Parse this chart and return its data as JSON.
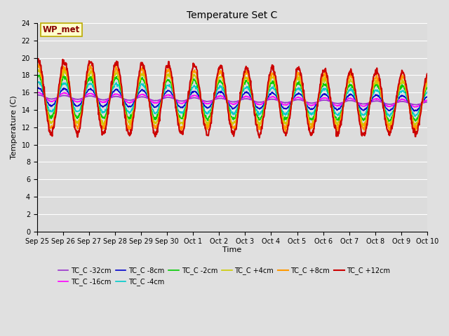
{
  "title": "Temperature Set C",
  "xlabel": "Time",
  "ylabel": "Temperature (C)",
  "ylim": [
    0,
    24
  ],
  "yticks": [
    0,
    2,
    4,
    6,
    8,
    10,
    12,
    14,
    16,
    18,
    20,
    22,
    24
  ],
  "fig_bg": "#e0e0e0",
  "plot_bg": "#dcdcdc",
  "annotation_label": "WP_met",
  "annotation_box_facecolor": "#ffffcc",
  "annotation_box_edgecolor": "#bbaa00",
  "annotation_text_color": "#880000",
  "series_order": [
    "TC_C -32cm",
    "TC_C -16cm",
    "TC_C -8cm",
    "TC_C -4cm",
    "TC_C -2cm",
    "TC_C +4cm",
    "TC_C +8cm",
    "TC_C +12cm"
  ],
  "series_colors": {
    "TC_C -32cm": "#9933cc",
    "TC_C -16cm": "#ff00ff",
    "TC_C -8cm": "#0000cc",
    "TC_C -4cm": "#00cccc",
    "TC_C -2cm": "#00cc00",
    "TC_C +4cm": "#cccc00",
    "TC_C +8cm": "#ff9900",
    "TC_C +12cm": "#cc0000"
  },
  "series_lw": {
    "TC_C -32cm": 1.2,
    "TC_C -16cm": 1.2,
    "TC_C -8cm": 1.2,
    "TC_C -4cm": 1.2,
    "TC_C -2cm": 1.2,
    "TC_C +4cm": 1.2,
    "TC_C +8cm": 1.5,
    "TC_C +12cm": 1.5
  },
  "amplitudes": {
    "TC_C -32cm": 0.25,
    "TC_C -16cm": 0.6,
    "TC_C -8cm": 1.2,
    "TC_C -4cm": 2.0,
    "TC_C -2cm": 2.8,
    "TC_C +4cm": 3.5,
    "TC_C +8cm": 4.2,
    "TC_C +12cm": 5.0
  },
  "base_mean": 15.5,
  "trend": -0.05,
  "n_days": 15,
  "samples_per_day": 72,
  "xtick_labels": [
    "Sep 25",
    "Sep 26",
    "Sep 27",
    "Sep 28",
    "Sep 29",
    "Sep 30",
    "Oct 1",
    "Oct 2",
    "Oct 3",
    "Oct 4",
    "Oct 5",
    "Oct 6",
    "Oct 7",
    "Oct 8",
    "Oct 9",
    "Oct 10"
  ],
  "grid_color": "#ffffff",
  "title_fontsize": 10,
  "tick_fontsize": 7,
  "label_fontsize": 8,
  "legend_fontsize": 7
}
